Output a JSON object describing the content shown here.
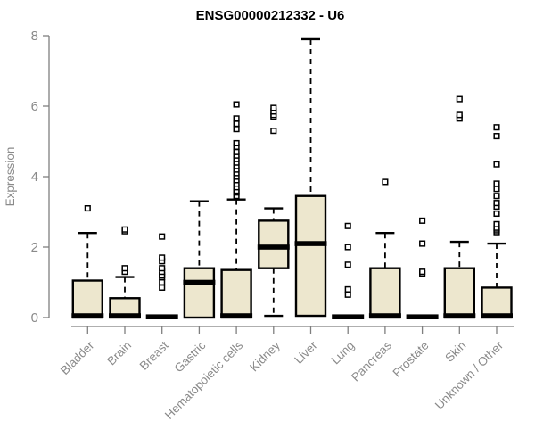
{
  "chart_data": {
    "type": "boxplot",
    "title": "ENSG00000212332 - U6",
    "xlabel": "",
    "ylabel": "Expression",
    "ylim": [
      0,
      8
    ],
    "yticks": [
      0,
      2,
      4,
      6,
      8
    ],
    "grid": false,
    "legend": "none",
    "categories": [
      "Bladder",
      "Brain",
      "Breast",
      "Gastric",
      "Hematopoietic cells",
      "Kidney",
      "Liver",
      "Lung",
      "Pancreas",
      "Prostate",
      "Skin",
      "Unknown / Other"
    ],
    "series": [
      {
        "name": "Bladder",
        "q1": 0,
        "median": 0.05,
        "q3": 1.05,
        "whisker_low": 0,
        "whisker_high": 2.4,
        "outliers": [
          3.1
        ]
      },
      {
        "name": "Brain",
        "q1": 0,
        "median": 0.05,
        "q3": 0.55,
        "whisker_low": 0,
        "whisker_high": 1.15,
        "outliers": [
          1.3,
          1.4,
          2.45,
          2.5
        ]
      },
      {
        "name": "Breast",
        "q1": 0,
        "median": 0.02,
        "q3": 0.04,
        "whisker_low": 0,
        "whisker_high": 0.04,
        "outliers": [
          0.85,
          1.0,
          1.15,
          1.2,
          1.3,
          1.4,
          1.6,
          1.7,
          2.3
        ]
      },
      {
        "name": "Gastric",
        "q1": 0,
        "median": 1.0,
        "q3": 1.4,
        "whisker_low": 0,
        "whisker_high": 3.3,
        "outliers": []
      },
      {
        "name": "Hematopoietic cells",
        "q1": 0,
        "median": 0.05,
        "q3": 1.35,
        "whisker_low": 0,
        "whisker_high": 3.35,
        "outliers": [
          3.45,
          3.55,
          3.6,
          3.7,
          3.8,
          3.9,
          4.0,
          4.1,
          4.2,
          4.3,
          4.4,
          4.5,
          4.6,
          4.7,
          4.85,
          4.95,
          5.35,
          5.5,
          5.65,
          6.05
        ]
      },
      {
        "name": "Kidney",
        "q1": 1.4,
        "median": 2.0,
        "q3": 2.75,
        "whisker_low": 0.05,
        "whisker_high": 3.1,
        "outliers": [
          5.3,
          5.7,
          5.75,
          5.85,
          5.95
        ]
      },
      {
        "name": "Liver",
        "q1": 0.05,
        "median": 2.1,
        "q3": 3.45,
        "whisker_low": 0.05,
        "whisker_high": 7.9,
        "outliers": []
      },
      {
        "name": "Lung",
        "q1": 0,
        "median": 0.02,
        "q3": 0.04,
        "whisker_low": 0,
        "whisker_high": 0.04,
        "outliers": [
          0.65,
          0.8,
          1.5,
          2.0,
          2.6
        ]
      },
      {
        "name": "Pancreas",
        "q1": 0,
        "median": 0.05,
        "q3": 1.4,
        "whisker_low": 0,
        "whisker_high": 2.4,
        "outliers": [
          3.85
        ]
      },
      {
        "name": "Prostate",
        "q1": 0,
        "median": 0.02,
        "q3": 0.04,
        "whisker_low": 0,
        "whisker_high": 0.04,
        "outliers": [
          1.25,
          1.3,
          2.1,
          2.75
        ]
      },
      {
        "name": "Skin",
        "q1": 0,
        "median": 0.05,
        "q3": 1.4,
        "whisker_low": 0,
        "whisker_high": 2.15,
        "outliers": [
          5.65,
          5.75,
          6.2
        ]
      },
      {
        "name": "Unknown / Other",
        "q1": 0,
        "median": 0.05,
        "q3": 0.85,
        "whisker_low": 0,
        "whisker_high": 2.1,
        "outliers": [
          2.4,
          2.45,
          2.5,
          2.55,
          2.65,
          2.95,
          3.15,
          3.25,
          3.45,
          3.65,
          3.8,
          4.35,
          5.15,
          5.4
        ]
      }
    ],
    "colors": {
      "box_fill": "#EDE7CE",
      "box_border": "#000000",
      "median": "#000000",
      "whisker": "#000000",
      "outlier_stroke": "#000000",
      "outlier_fill": "#ffffff",
      "axis": "#7f7f7f",
      "label": "#8a8a8a",
      "title": "#000000",
      "background": "#ffffff"
    }
  }
}
